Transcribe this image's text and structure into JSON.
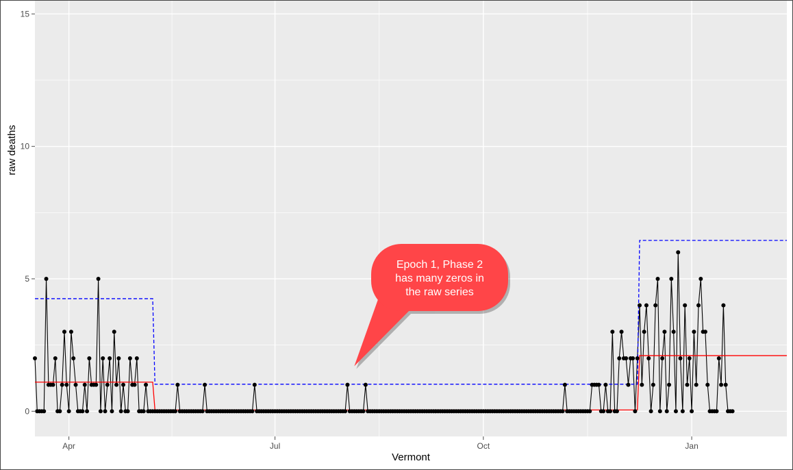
{
  "chart_data": {
    "type": "line",
    "xlabel": "Vermont",
    "ylabel": "raw deaths",
    "x_range": [
      "2020-03-17",
      "2021-02-12"
    ],
    "ylim": [
      -0.95,
      15.5
    ],
    "grid": true,
    "legend": "none",
    "x_ticks": [
      {
        "date": "2020-04-01",
        "label": "Apr"
      },
      {
        "date": "2020-07-01",
        "label": "Jul"
      },
      {
        "date": "2020-10-01",
        "label": "Oct"
      },
      {
        "date": "2021-01-01",
        "label": "Jan"
      }
    ],
    "y_ticks": [
      0,
      5,
      10,
      15
    ],
    "series": [
      {
        "kind": "points",
        "color": "#000000",
        "start_date": "2020-03-17",
        "values": [
          2,
          0,
          0,
          0,
          0,
          5,
          1,
          1,
          1,
          2,
          0,
          0,
          1,
          3,
          1,
          0,
          3,
          2,
          1,
          0,
          0,
          0,
          1,
          0,
          2,
          1,
          1,
          1,
          5,
          0,
          2,
          0,
          1,
          2,
          0,
          3,
          1,
          2,
          0,
          1,
          0,
          0,
          2,
          1,
          1,
          2,
          0,
          0,
          0,
          1,
          0,
          0,
          0,
          0,
          0,
          0,
          0,
          0,
          0,
          0,
          0,
          0,
          0,
          1,
          0,
          0,
          0,
          0,
          0,
          0,
          0,
          0,
          0,
          0,
          0,
          1,
          0,
          0,
          0,
          0,
          0,
          0,
          0,
          0,
          0,
          0,
          0,
          0,
          0,
          0,
          0,
          0,
          0,
          0,
          0,
          0,
          0,
          1,
          0,
          0,
          0,
          0,
          0,
          0,
          0,
          0,
          0,
          0,
          0,
          0,
          0,
          0,
          0,
          0,
          0,
          0,
          0,
          0,
          0,
          0,
          0,
          0,
          0,
          0,
          0,
          0,
          0,
          0,
          0,
          0,
          0,
          0,
          0,
          0,
          0,
          0,
          0,
          0,
          1,
          0,
          0,
          0,
          0,
          0,
          0,
          0,
          1,
          0,
          0,
          0,
          0,
          0,
          0,
          0,
          0,
          0,
          0,
          0,
          0,
          0,
          0,
          0,
          0,
          0,
          0,
          0,
          0,
          0,
          0,
          0,
          0,
          0,
          0,
          0,
          0,
          0,
          0,
          0,
          0,
          0,
          0,
          0,
          0,
          0,
          0,
          0,
          0,
          0,
          0,
          0,
          0,
          0,
          0,
          0,
          0,
          0,
          0,
          0,
          0,
          0,
          0,
          0,
          0,
          0,
          0,
          0,
          0,
          0,
          0,
          0,
          0,
          0,
          0,
          0,
          0,
          0,
          0,
          0,
          0,
          0,
          0,
          0,
          0,
          0,
          0,
          0,
          0,
          0,
          0,
          0,
          0,
          0,
          0,
          0,
          1,
          0,
          0,
          0,
          0,
          0,
          0,
          0,
          0,
          0,
          0,
          0,
          1,
          1,
          1,
          1,
          0,
          0,
          1,
          0,
          0,
          3,
          0,
          0,
          2,
          3,
          2,
          2,
          1,
          2,
          2,
          0,
          2,
          4,
          1,
          3,
          4,
          2,
          0,
          1,
          4,
          5,
          0,
          2,
          3,
          0,
          1,
          5,
          3,
          0,
          6,
          2,
          0,
          4,
          1,
          2,
          0,
          3,
          1,
          4,
          5,
          3,
          3,
          1,
          0,
          0,
          0,
          0,
          2,
          1,
          4,
          1,
          0,
          0,
          0
        ]
      },
      {
        "kind": "step",
        "color": "#ff0000",
        "style": "solid",
        "segments": [
          {
            "from": "2020-03-17",
            "to": "2020-05-08",
            "value": 1.1
          },
          {
            "from": "2020-05-09",
            "to": "2020-12-08",
            "value": 0.05
          },
          {
            "from": "2020-12-09",
            "to": "2021-02-12",
            "value": 2.1
          }
        ]
      },
      {
        "kind": "step",
        "color": "#0000ff",
        "style": "dashed",
        "segments": [
          {
            "from": "2020-03-17",
            "to": "2020-05-08",
            "value": 4.25
          },
          {
            "from": "2020-05-09",
            "to": "2020-12-08",
            "value": 1.02
          },
          {
            "from": "2020-12-09",
            "to": "2021-02-12",
            "value": 6.45
          }
        ]
      }
    ],
    "annotations": [
      {
        "kind": "callout",
        "fill": "#ff4548",
        "text_lines": [
          "Epoch 1, Phase 2",
          "has many zeros in",
          "the raw series"
        ],
        "pointer_date": "2020-08-05",
        "pointer_value": 1.7
      }
    ]
  }
}
